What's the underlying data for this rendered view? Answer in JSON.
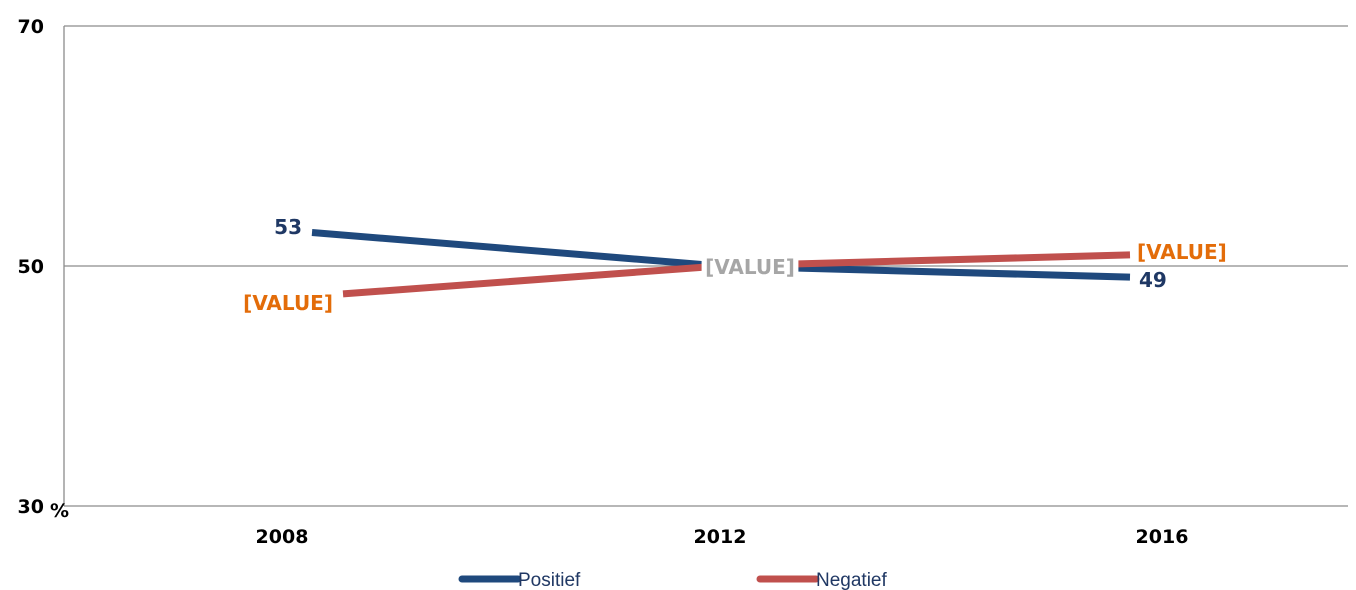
{
  "chart_data": {
    "type": "line",
    "x": [
      "2008",
      "2012",
      "2016"
    ],
    "ylim": [
      30,
      70
    ],
    "y_ticks": [
      "70",
      "50",
      "30"
    ],
    "y_unit": "%",
    "grid": "horizontal",
    "legend_position": "bottom",
    "series": [
      {
        "name": "Positief",
        "color": "#1f497d",
        "values": [
          53,
          50,
          49
        ],
        "data_labels": [
          "53",
          "",
          "49"
        ],
        "label_color": "#1f3864"
      },
      {
        "name": "Negatief",
        "color": "#c0504d",
        "values": [
          47.3,
          50,
          51
        ],
        "data_labels": [
          "[VALUE]",
          "[VALUE]",
          "[VALUE]"
        ],
        "label_colors": [
          "#e36c09",
          "#a6a6a6",
          "#e36c09"
        ]
      }
    ]
  }
}
